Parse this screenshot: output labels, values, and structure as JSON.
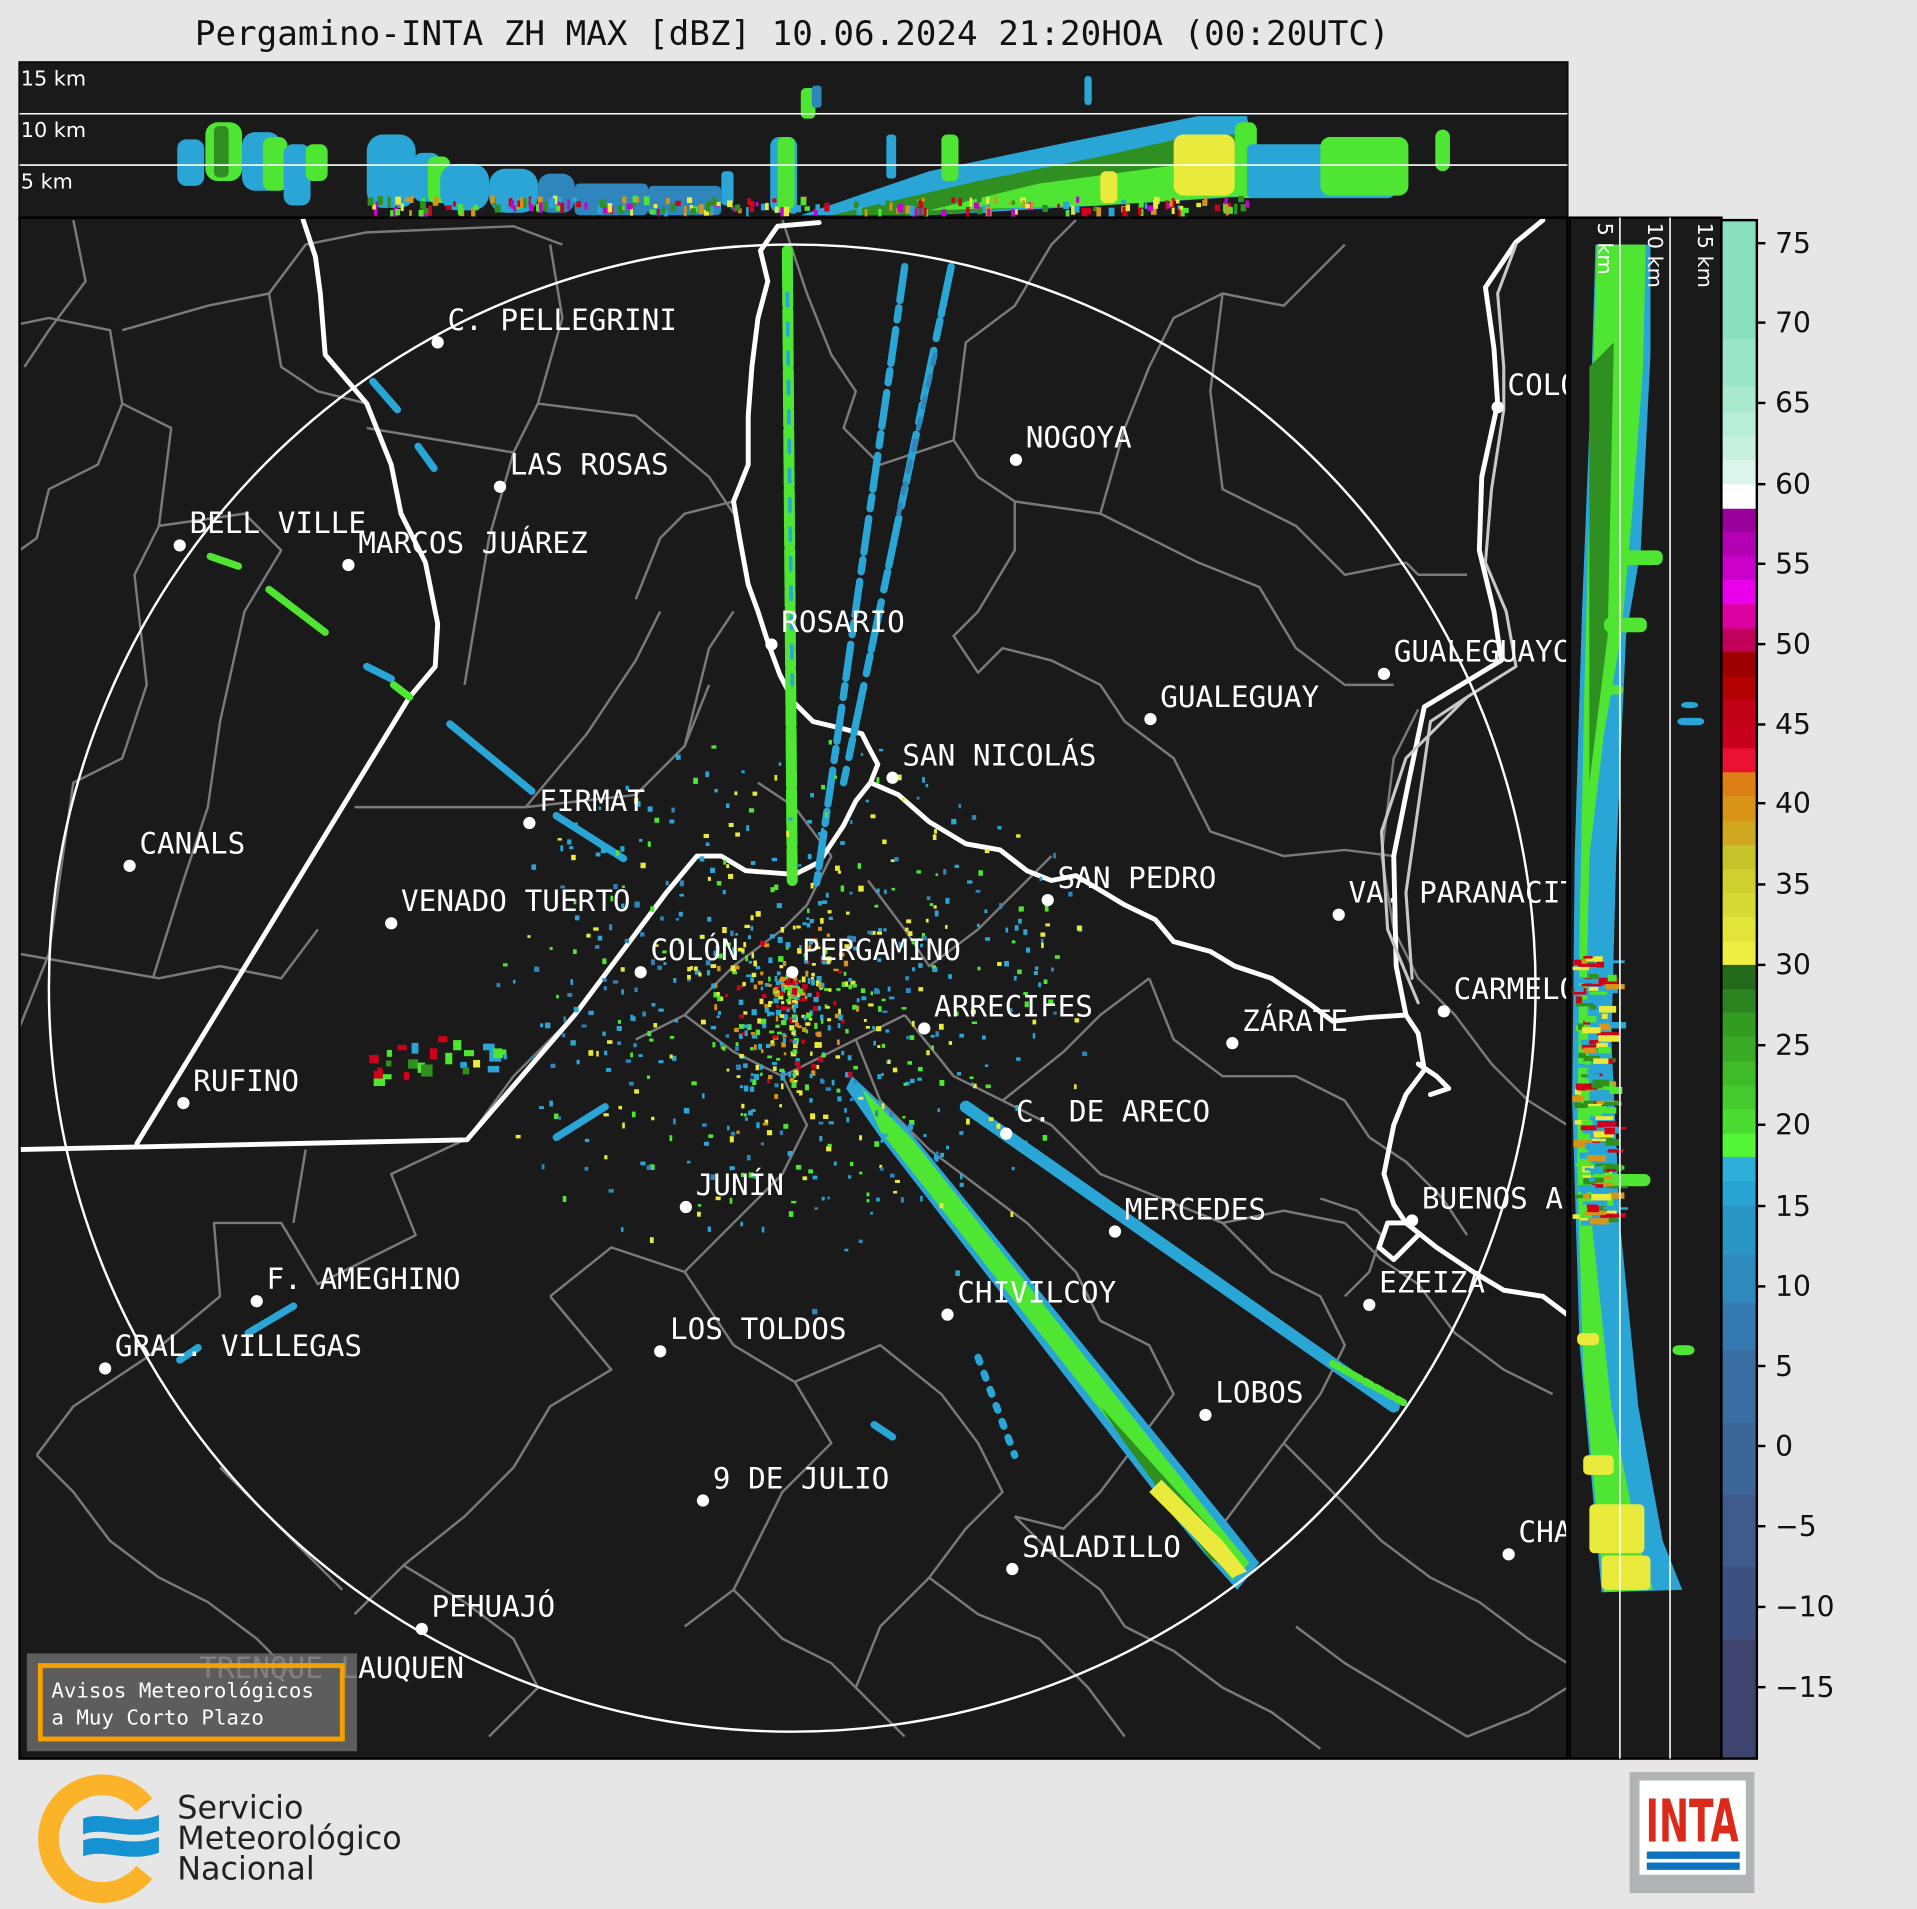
{
  "title": "Pergamino-INTA ZH MAX [dBZ] 10.06.2024 21:20HOA (00:20UTC)",
  "top_panel": {
    "height_labels": [
      "15 km",
      "10 km",
      "5 km"
    ]
  },
  "side_panel": {
    "height_labels": [
      "5 km",
      "10 km",
      "15 km"
    ]
  },
  "radar_site": "PERGAMINO",
  "cities": [
    "C. PELLEGRINI",
    "LAS ROSAS",
    "BELL VILLE",
    "MARCOS JUÁREZ",
    "NOGOYA",
    "ROSARIO",
    "GUALEGUAY",
    "GUALEGUAYCHÚ",
    "COLÓN",
    "SAN NICOLÁS",
    "FIRMAT",
    "CANALS",
    "SAN PEDRO",
    "VA. PARANACITO",
    "VENADO TUERTO",
    "COLÓN",
    "PERGAMINO",
    "ARRECIFES",
    "CARMELO",
    "ZÁRATE",
    "RUFINO",
    "C. DE ARECO",
    "JUNÍN",
    "BUENOS AIRES",
    "MERCEDES",
    "F. AMEGHINO",
    "CHIVILCOY",
    "EZEIZA",
    "GRAL. VILLEGAS",
    "LOS TOLDOS",
    "LOBOS",
    "9 DE JULIO",
    "CHASCOMÚS",
    "SALADILLO",
    "PEHUAJÓ",
    "TRENQUE LAUQUEN"
  ],
  "warning_box": {
    "line1": "Avisos Meteorológicos",
    "line2": "a Muy Corto Plazo",
    "border_color": "#f5a000"
  },
  "colorbar": {
    "unit": "dBZ",
    "ticks": [
      "75",
      "70",
      "65",
      "60",
      "55",
      "50",
      "45",
      "40",
      "35",
      "30",
      "25",
      "20",
      "15",
      "10",
      "5",
      "0",
      "−5",
      "−10",
      "−15"
    ],
    "colors": [
      "#88dfbf",
      "#98e5c8",
      "#a9eacf",
      "#b7eed9",
      "#c6f1e1",
      "#dcf5ec",
      "#ffffff",
      "#9a009a",
      "#b300b3",
      "#cc00cc",
      "#ea00ea",
      "#dc00a0",
      "#c2005a",
      "#9c0000",
      "#b30000",
      "#c20016",
      "#c8001e",
      "#ec1034",
      "#dc7f14",
      "#d89418",
      "#cfa820",
      "#c4c42a",
      "#cfd030",
      "#d8da34",
      "#e2e43a",
      "#eeee40",
      "#23691a",
      "#2b841f",
      "#339b22",
      "#39aa25",
      "#3fbb29",
      "#45cb2d",
      "#4bdc31",
      "#54f535",
      "#2cb0da",
      "#28a3d2",
      "#2a96c6",
      "#2e8abd",
      "#3479b0",
      "#3a6da2",
      "#3c6698",
      "#3e5b8c",
      "#3e507f",
      "#3e446e"
    ]
  },
  "logos": {
    "smn": {
      "line1": "Servicio",
      "line2": "Meteorológico",
      "line3": "Nacional"
    },
    "inta": {
      "text": "INTA"
    }
  },
  "colors": {
    "background": "#e6e6e6",
    "map": "#1a1a1a",
    "borders": "#808080",
    "rivers": "#ffffff"
  }
}
